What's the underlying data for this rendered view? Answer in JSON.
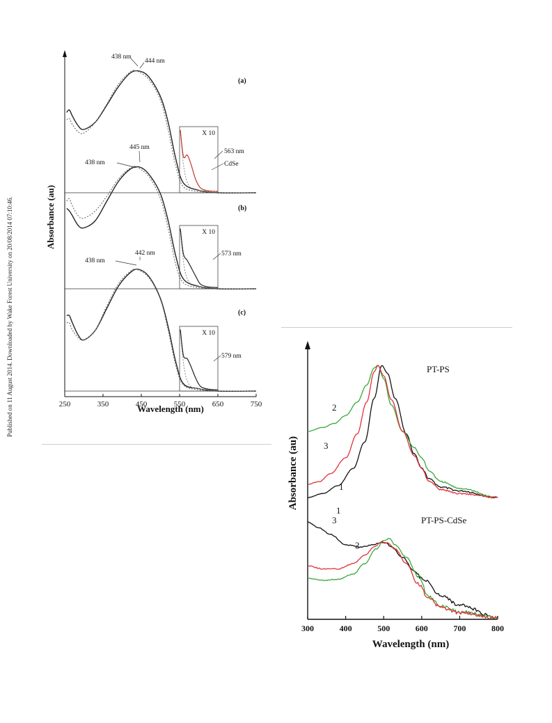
{
  "side_note": "Published on 11 August 2014. Downloaded by Wake Forest University on 20/08/2014 07:10:46.",
  "chart_data": [
    {
      "type": "line",
      "xlabel": "Wavelength (nm)",
      "ylabel": "Absorbance (au)",
      "xlim": [
        250,
        750
      ],
      "xticks": [
        "250",
        "350",
        "450",
        "550",
        "650",
        "750"
      ],
      "panels": [
        {
          "label": "(a)",
          "inset_label": "X 10",
          "series": [
            {
              "style": "solid",
              "peak_nm": 444,
              "x": [
                255,
                262,
                270,
                285,
                300,
                330,
                360,
                390,
                420,
                444,
                470,
                500,
                520,
                540,
                560,
                600,
                650,
                750
              ],
              "y": [
                0.66,
                0.68,
                0.63,
                0.55,
                0.52,
                0.58,
                0.72,
                0.87,
                0.98,
                1.0,
                0.95,
                0.79,
                0.58,
                0.28,
                0.08,
                0.02,
                0.0,
                0.0
              ]
            },
            {
              "style": "dotted",
              "peak_nm": 438,
              "x": [
                255,
                262,
                270,
                285,
                300,
                330,
                360,
                390,
                420,
                438,
                470,
                500,
                520,
                540,
                560,
                600,
                650,
                750
              ],
              "y": [
                0.6,
                0.61,
                0.56,
                0.5,
                0.49,
                0.58,
                0.73,
                0.89,
                0.99,
                1.0,
                0.93,
                0.76,
                0.52,
                0.22,
                0.05,
                0.01,
                0.0,
                0.0
              ]
            }
          ],
          "annotations": [
            "438 nm",
            "444 nm",
            "563 nm",
            "CdSe"
          ]
        },
        {
          "label": "(b)",
          "inset_label": "X 10",
          "series": [
            {
              "style": "solid",
              "peak_nm": 445,
              "x": [
                255,
                262,
                270,
                285,
                300,
                330,
                360,
                390,
                420,
                445,
                470,
                500,
                520,
                540,
                560,
                600,
                650,
                750
              ],
              "y": [
                0.66,
                0.64,
                0.6,
                0.52,
                0.5,
                0.56,
                0.72,
                0.88,
                0.98,
                1.0,
                0.94,
                0.78,
                0.56,
                0.27,
                0.08,
                0.02,
                0.0,
                0.0
              ]
            },
            {
              "style": "dotted",
              "peak_nm": 438,
              "x": [
                255,
                262,
                270,
                285,
                300,
                330,
                360,
                390,
                420,
                438,
                470,
                500,
                520,
                540,
                560,
                600,
                650,
                750
              ],
              "y": [
                0.72,
                0.74,
                0.68,
                0.6,
                0.58,
                0.64,
                0.76,
                0.9,
                0.99,
                1.0,
                0.92,
                0.74,
                0.5,
                0.2,
                0.05,
                0.01,
                0.0,
                0.0
              ]
            }
          ],
          "annotations": [
            "438 nm",
            "445 nm",
            "573 nm"
          ]
        },
        {
          "label": "(c)",
          "inset_label": "X 10",
          "series": [
            {
              "style": "solid",
              "peak_nm": 442,
              "x": [
                255,
                262,
                270,
                285,
                300,
                330,
                360,
                390,
                420,
                442,
                470,
                500,
                520,
                540,
                560,
                600,
                650,
                750
              ],
              "y": [
                0.62,
                0.62,
                0.56,
                0.46,
                0.42,
                0.5,
                0.68,
                0.86,
                0.97,
                1.0,
                0.94,
                0.76,
                0.53,
                0.24,
                0.06,
                0.02,
                0.0,
                0.0
              ]
            },
            {
              "style": "dotted",
              "peak_nm": 438,
              "x": [
                255,
                262,
                270,
                285,
                300,
                330,
                360,
                390,
                420,
                438,
                470,
                500,
                520,
                540,
                560,
                600,
                650,
                750
              ],
              "y": [
                0.56,
                0.56,
                0.5,
                0.44,
                0.42,
                0.5,
                0.7,
                0.88,
                0.98,
                1.0,
                0.93,
                0.75,
                0.5,
                0.21,
                0.05,
                0.01,
                0.0,
                0.0
              ]
            }
          ],
          "annotations": [
            "438 nm",
            "442 nm",
            "579 nm"
          ]
        }
      ]
    },
    {
      "type": "line",
      "xlabel": "Wavelength (nm)",
      "ylabel": "Absorbance (au)",
      "xlim": [
        300,
        800
      ],
      "xticks": [
        "300",
        "400",
        "500",
        "600",
        "700",
        "800"
      ],
      "groups": [
        {
          "title": "PT-PS",
          "series": [
            {
              "name": "1",
              "color": "#111111",
              "x": [
                300,
                340,
                380,
                420,
                450,
                475,
                495,
                510,
                530,
                560,
                580,
                600,
                620,
                650,
                700,
                800
              ],
              "y": [
                0.0,
                0.03,
                0.09,
                0.22,
                0.42,
                0.75,
                1.0,
                0.94,
                0.75,
                0.48,
                0.33,
                0.22,
                0.14,
                0.08,
                0.05,
                0.0
              ]
            },
            {
              "name": "2",
              "color": "#3aa83a",
              "x": [
                300,
                340,
                370,
                400,
                430,
                455,
                475,
                485,
                500,
                520,
                550,
                580,
                600,
                620,
                650,
                700,
                800
              ],
              "y": [
                0.5,
                0.53,
                0.56,
                0.62,
                0.72,
                0.85,
                0.98,
                1.0,
                0.9,
                0.7,
                0.5,
                0.38,
                0.3,
                0.2,
                0.12,
                0.07,
                0.0
              ]
            },
            {
              "name": "3",
              "color": "#e0303a",
              "x": [
                300,
                330,
                360,
                400,
                430,
                455,
                475,
                485,
                500,
                520,
                550,
                580,
                600,
                620,
                650,
                700,
                800
              ],
              "y": [
                0.1,
                0.12,
                0.18,
                0.3,
                0.48,
                0.72,
                0.95,
                1.0,
                0.92,
                0.74,
                0.5,
                0.32,
                0.22,
                0.12,
                0.06,
                0.03,
                0.0
              ]
            }
          ],
          "labels": [
            "1",
            "2",
            "3"
          ]
        },
        {
          "title": "PT-PS-CdSe",
          "series": [
            {
              "name": "1",
              "color": "#111111",
              "x": [
                300,
                330,
                360,
                400,
                440,
                470,
                490,
                505,
                520,
                550,
                580,
                600,
                650,
                700,
                800
              ],
              "y": [
                0.92,
                0.86,
                0.8,
                0.7,
                0.68,
                0.7,
                0.72,
                0.72,
                0.68,
                0.58,
                0.45,
                0.38,
                0.22,
                0.12,
                0.0
              ]
            },
            {
              "name": "2",
              "color": "#3aa83a",
              "x": [
                300,
                340,
                380,
                420,
                450,
                480,
                500,
                515,
                530,
                560,
                590,
                620,
                650,
                700,
                800
              ],
              "y": [
                0.38,
                0.36,
                0.37,
                0.42,
                0.52,
                0.66,
                0.74,
                0.76,
                0.7,
                0.58,
                0.4,
                0.2,
                0.11,
                0.06,
                0.0
              ]
            },
            {
              "name": "3",
              "color": "#e0303a",
              "x": [
                300,
                340,
                380,
                420,
                450,
                475,
                495,
                510,
                530,
                560,
                590,
                620,
                650,
                700,
                800
              ],
              "y": [
                0.5,
                0.47,
                0.47,
                0.52,
                0.6,
                0.68,
                0.73,
                0.72,
                0.66,
                0.52,
                0.33,
                0.18,
                0.1,
                0.05,
                0.0
              ]
            }
          ],
          "labels": [
            "1",
            "2",
            "3"
          ]
        }
      ]
    }
  ]
}
